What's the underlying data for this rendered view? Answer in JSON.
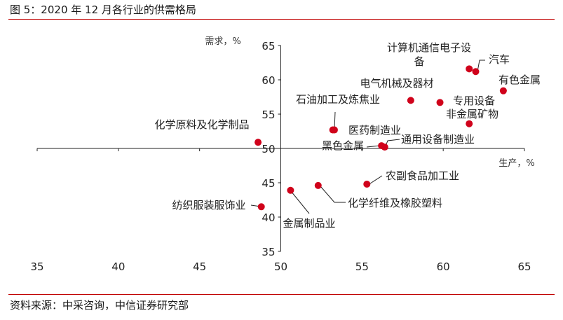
{
  "figure": {
    "title": "图 5：2020 年 12 月各行业的供需格局",
    "source": "资料来源：中采咨询，中信证券研究部"
  },
  "colors": {
    "point": "#d0021b",
    "rule": "#c00000",
    "axis": "#222222",
    "leader": "#222222"
  },
  "chart_data": {
    "type": "scatter",
    "title": "",
    "xlabel": "生产，%",
    "ylabel": "需求，%",
    "xlim": [
      35,
      65
    ],
    "ylim": [
      35,
      65
    ],
    "xticks": [
      35,
      40,
      45,
      50,
      55,
      60,
      65
    ],
    "yticks": [
      35,
      40,
      45,
      50,
      55,
      60,
      65
    ],
    "axes_cross_at": [
      50,
      50
    ],
    "grid": false,
    "legend": "none",
    "points": [
      {
        "label": "计算机通信电子设备",
        "x": 61.6,
        "y": 61.6
      },
      {
        "label": "汽车",
        "x": 62.0,
        "y": 61.2
      },
      {
        "label": "有色金属",
        "x": 63.7,
        "y": 58.4
      },
      {
        "label": "电气机械及器材",
        "x": 58.0,
        "y": 57.0
      },
      {
        "label": "专用设备",
        "x": 59.8,
        "y": 56.7
      },
      {
        "label": "非金属矿物",
        "x": 61.6,
        "y": 53.6
      },
      {
        "label": "石油加工及炼焦业",
        "x": 53.2,
        "y": 52.7
      },
      {
        "label": "医药制造业",
        "x": 53.3,
        "y": 52.7
      },
      {
        "label": "化学原料及化学制品",
        "x": 48.6,
        "y": 50.9
      },
      {
        "label": "黑色金属",
        "x": 56.2,
        "y": 50.4
      },
      {
        "label": "通用设备制造业",
        "x": 56.4,
        "y": 50.2
      },
      {
        "label": "农副食品加工业",
        "x": 55.3,
        "y": 44.8
      },
      {
        "label": "化学纤维及橡胶塑料",
        "x": 52.3,
        "y": 44.6
      },
      {
        "label": "金属制品业",
        "x": 50.6,
        "y": 43.9
      },
      {
        "label": "纺织服装服饰业",
        "x": 48.8,
        "y": 41.5
      }
    ]
  }
}
